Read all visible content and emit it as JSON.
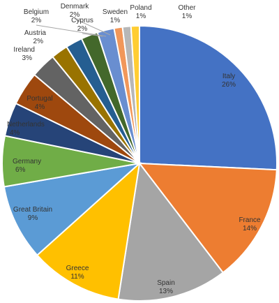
{
  "chart_data": {
    "type": "pie",
    "slices": [
      {
        "label": "Italy",
        "value": 26,
        "value_label": "26%",
        "color": "#4472C4"
      },
      {
        "label": "France",
        "value": 14,
        "value_label": "14%",
        "color": "#ED7D31"
      },
      {
        "label": "Spain",
        "value": 13,
        "value_label": "13%",
        "color": "#A5A5A5"
      },
      {
        "label": "Greece",
        "value": 11,
        "value_label": "11%",
        "color": "#FFC000"
      },
      {
        "label": "Great Britain",
        "value": 9,
        "value_label": "9%",
        "color": "#5B9BD5"
      },
      {
        "label": "Germany",
        "value": 6,
        "value_label": "6%",
        "color": "#70AD47"
      },
      {
        "label": "Netherlands",
        "value": 4,
        "value_label": "4%",
        "color": "#264478"
      },
      {
        "label": "Portugal",
        "value": 4,
        "value_label": "4%",
        "color": "#9E480E"
      },
      {
        "label": "Ireland",
        "value": 3,
        "value_label": "3%",
        "color": "#636363"
      },
      {
        "label": "Austria",
        "value": 2,
        "value_label": "2%",
        "color": "#997300"
      },
      {
        "label": "Belgium",
        "value": 2,
        "value_label": "2%",
        "color": "#255E91"
      },
      {
        "label": "Cyprus",
        "value": 2,
        "value_label": "2%",
        "color": "#43682B"
      },
      {
        "label": "Denmark",
        "value": 2,
        "value_label": "2%",
        "color": "#698ED0"
      },
      {
        "label": "Sweden",
        "value": 1,
        "value_label": "1%",
        "color": "#F1975A"
      },
      {
        "label": "Poland",
        "value": 1,
        "value_label": "1%",
        "color": "#B7B7B7"
      },
      {
        "label": "Other",
        "value": 1,
        "value_label": "1%",
        "color": "#FFCD33"
      }
    ]
  }
}
